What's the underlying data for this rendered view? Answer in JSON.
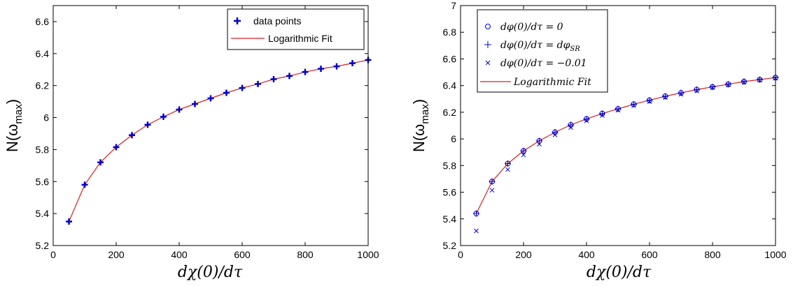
{
  "chart_data": [
    {
      "type": "line",
      "xlabel": "dχ(0)/dτ",
      "ylabel": {
        "main": "N(ω",
        "sub": "max",
        "close": ")"
      },
      "xlim": [
        0,
        1000
      ],
      "ylim": [
        5.2,
        6.7
      ],
      "xticks": [
        0,
        200,
        400,
        600,
        800,
        1000
      ],
      "xtick_labels": [
        "0",
        "200",
        "400",
        "600",
        "800",
        "1000"
      ],
      "yticks": [
        5.2,
        5.4,
        5.6,
        5.8,
        6.0,
        6.2,
        6.4,
        6.6
      ],
      "ytick_labels": [
        "5.2",
        "5.4",
        "5.6",
        "5.8",
        "6",
        "6.2",
        "6.4",
        "6.6"
      ],
      "grid": false,
      "legend_position": "top-right",
      "x": [
        50,
        100,
        150,
        200,
        250,
        300,
        350,
        400,
        450,
        500,
        550,
        600,
        650,
        700,
        750,
        800,
        850,
        900,
        950,
        1000
      ],
      "series": [
        {
          "name": "data points",
          "kind": "markers",
          "marker": "plus",
          "color": "#0000cc",
          "values": [
            5.35,
            5.58,
            5.72,
            5.815,
            5.89,
            5.955,
            6.005,
            6.05,
            6.085,
            6.12,
            6.155,
            6.185,
            6.21,
            6.24,
            6.26,
            6.285,
            6.305,
            6.32,
            6.34,
            6.36
          ]
        },
        {
          "name": "Logarithmic Fit",
          "kind": "line",
          "color": "#d62020",
          "values": [
            5.35,
            5.58,
            5.72,
            5.815,
            5.89,
            5.955,
            6.005,
            6.05,
            6.085,
            6.12,
            6.155,
            6.185,
            6.21,
            6.24,
            6.26,
            6.285,
            6.305,
            6.32,
            6.34,
            6.36
          ]
        }
      ]
    },
    {
      "type": "line",
      "xlabel": "dχ(0)/dτ",
      "ylabel": {
        "main": "N(ω",
        "sub": "max",
        "close": ")"
      },
      "xlim": [
        0,
        1000
      ],
      "ylim": [
        5.2,
        7.0
      ],
      "xticks": [
        0,
        200,
        400,
        600,
        800,
        1000
      ],
      "xtick_labels": [
        "0",
        "200",
        "400",
        "600",
        "800",
        "1000"
      ],
      "yticks": [
        5.2,
        5.4,
        5.6,
        5.8,
        6.0,
        6.2,
        6.4,
        6.6,
        6.8,
        7.0
      ],
      "ytick_labels": [
        "5.2",
        "5.4",
        "5.6",
        "5.8",
        "6",
        "6.2",
        "6.4",
        "6.6",
        "6.8",
        "7"
      ],
      "grid": false,
      "legend_position": "top-left",
      "x": [
        50,
        100,
        150,
        200,
        250,
        300,
        350,
        400,
        450,
        500,
        550,
        600,
        650,
        700,
        750,
        800,
        850,
        900,
        950,
        1000
      ],
      "series": [
        {
          "name": "dφ(0)/dτ = 0",
          "kind": "markers",
          "marker": "circle",
          "color": "#0000cc",
          "values": [
            5.44,
            5.68,
            5.815,
            5.91,
            5.985,
            6.05,
            6.105,
            6.15,
            6.19,
            6.225,
            6.26,
            6.29,
            6.32,
            6.345,
            6.37,
            6.39,
            6.41,
            6.43,
            6.445,
            6.46
          ]
        },
        {
          "name": "dφ(0)/dτ = dφ_SR",
          "kind": "markers",
          "marker": "plus",
          "color": "#0000cc",
          "values": [
            5.44,
            5.68,
            5.815,
            5.91,
            5.985,
            6.05,
            6.105,
            6.15,
            6.19,
            6.225,
            6.26,
            6.29,
            6.32,
            6.345,
            6.37,
            6.39,
            6.41,
            6.43,
            6.445,
            6.46
          ]
        },
        {
          "name": "dφ(0)/dτ = −0.01",
          "kind": "markers",
          "marker": "cross",
          "color": "#0000cc",
          "values": [
            5.31,
            5.615,
            5.77,
            5.88,
            5.96,
            6.03,
            6.085,
            6.135,
            6.175,
            6.215,
            6.25,
            6.28,
            6.31,
            6.335,
            6.36,
            6.385,
            6.405,
            6.425,
            6.44,
            6.455
          ]
        },
        {
          "name": "Logarithmic Fit",
          "kind": "line",
          "color": "#d62020",
          "values": [
            5.44,
            5.68,
            5.815,
            5.91,
            5.985,
            6.05,
            6.105,
            6.15,
            6.19,
            6.225,
            6.26,
            6.29,
            6.32,
            6.345,
            6.37,
            6.39,
            6.41,
            6.43,
            6.445,
            6.46
          ]
        }
      ]
    }
  ],
  "legends": [
    {
      "labels": [
        "data points",
        "Logarithmic Fit"
      ]
    },
    {
      "labels": [
        "dφ(0)/dτ = 0",
        "dφ(0)/dτ = dφ",
        "SR",
        "dφ(0)/dτ = −0.01",
        "Logarithmic Fit"
      ]
    }
  ]
}
